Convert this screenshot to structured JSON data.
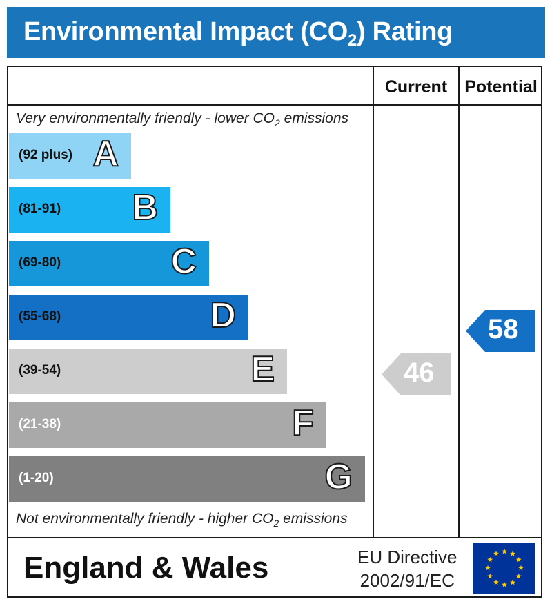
{
  "title": {
    "prefix": "Environmental Impact (CO",
    "sub": "2",
    "suffix": ") Rating"
  },
  "columns": {
    "current": "Current",
    "potential": "Potential"
  },
  "notes": {
    "top_prefix": "Very environmentally friendly - lower CO",
    "top_sub": "2",
    "top_suffix": " emissions",
    "bottom_prefix": "Not environmentally friendly - higher CO",
    "bottom_sub": "2",
    "bottom_suffix": " emissions"
  },
  "bands": [
    {
      "letter": "A",
      "range": "(92 plus)",
      "color": "#8fd3f5",
      "text_color": "#111111"
    },
    {
      "letter": "B",
      "range": "(81-91)",
      "color": "#1ab2f0",
      "text_color": "#111111"
    },
    {
      "letter": "C",
      "range": "(69-80)",
      "color": "#1597d9",
      "text_color": "#111111"
    },
    {
      "letter": "D",
      "range": "(55-68)",
      "color": "#1470c4",
      "text_color": "#111111"
    },
    {
      "letter": "E",
      "range": "(39-54)",
      "color": "#cdcdcd",
      "text_color": "#111111"
    },
    {
      "letter": "F",
      "range": "(21-38)",
      "color": "#a9a9a9",
      "text_color": "#ffffff"
    },
    {
      "letter": "G",
      "range": "(1-20)",
      "color": "#808080",
      "text_color": "#ffffff"
    }
  ],
  "ratings": {
    "current": {
      "value": "46",
      "band": "E",
      "color": "#cdcdcd"
    },
    "potential": {
      "value": "58",
      "band": "D",
      "color": "#1470c4"
    }
  },
  "footer": {
    "region": "England & Wales",
    "directive_line1": "EU Directive",
    "directive_line2": "2002/91/EC"
  },
  "icons": {
    "flag": "eu-flag-icon"
  }
}
